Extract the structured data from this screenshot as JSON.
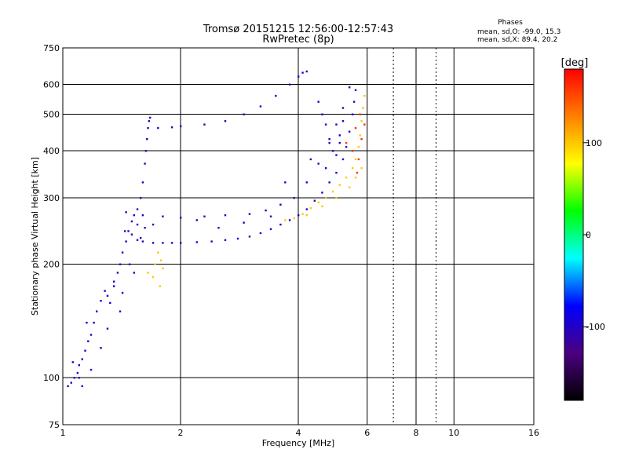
{
  "chart_data": {
    "type": "scatter",
    "title": "Tromsø 20151215 12:56:00-12:57:43",
    "subtitle": "RwPretec (8p)",
    "xlabel": "Frequency [MHz]",
    "ylabel": "Stationary phase Virtual Height [km]",
    "x_scale": "log",
    "y_scale": "log",
    "xlim": [
      1,
      16
    ],
    "ylim": [
      75,
      750
    ],
    "x_ticks": [
      1,
      2,
      4,
      6,
      8,
      10,
      16
    ],
    "y_ticks": [
      75,
      100,
      200,
      300,
      400,
      500,
      600,
      750
    ],
    "phase_header": "Phases",
    "phase_o": "mean, sd,O: -99.0, 15.3",
    "phase_x": "mean, sd,X:  89.4, 20.2",
    "colorbar": {
      "label": "[deg]",
      "range": [
        -180,
        180
      ],
      "ticks": [
        100,
        0,
        -100
      ],
      "tick_values": [
        100,
        0,
        -100
      ],
      "stops": [
        "#000000",
        "#4b0080",
        "#0000ff",
        "#00ffff",
        "#00ff00",
        "#ffff00",
        "#ff8000",
        "#ff0000"
      ]
    },
    "series": [
      {
        "phase_deg": -100,
        "points": [
          [
            1.03,
            95
          ],
          [
            1.05,
            97
          ],
          [
            1.07,
            100
          ],
          [
            1.09,
            103
          ],
          [
            1.1,
            108
          ],
          [
            1.12,
            112
          ],
          [
            1.14,
            118
          ],
          [
            1.16,
            125
          ],
          [
            1.18,
            130
          ],
          [
            1.2,
            140
          ],
          [
            1.22,
            150
          ],
          [
            1.25,
            160
          ],
          [
            1.28,
            170
          ],
          [
            1.3,
            165
          ],
          [
            1.32,
            158
          ],
          [
            1.35,
            175
          ],
          [
            1.38,
            190
          ],
          [
            1.4,
            200
          ],
          [
            1.42,
            215
          ],
          [
            1.45,
            230
          ],
          [
            1.47,
            245
          ],
          [
            1.5,
            260
          ],
          [
            1.52,
            270
          ],
          [
            1.55,
            280
          ],
          [
            1.58,
            300
          ],
          [
            1.6,
            330
          ],
          [
            1.62,
            370
          ],
          [
            1.63,
            400
          ],
          [
            1.64,
            430
          ],
          [
            1.65,
            460
          ],
          [
            1.66,
            480
          ],
          [
            1.67,
            490
          ],
          [
            1.44,
            245
          ],
          [
            1.5,
            240
          ],
          [
            1.55,
            232
          ],
          [
            1.6,
            230
          ],
          [
            1.7,
            228
          ],
          [
            1.8,
            228
          ],
          [
            1.9,
            228
          ],
          [
            2.0,
            228
          ],
          [
            2.2,
            229
          ],
          [
            2.4,
            230
          ],
          [
            2.6,
            232
          ],
          [
            2.8,
            234
          ],
          [
            3.0,
            237
          ],
          [
            3.2,
            242
          ],
          [
            3.4,
            248
          ],
          [
            3.6,
            255
          ],
          [
            3.8,
            262
          ],
          [
            4.0,
            270
          ],
          [
            4.2,
            280
          ],
          [
            4.4,
            295
          ],
          [
            4.6,
            310
          ],
          [
            4.8,
            330
          ],
          [
            5.0,
            350
          ],
          [
            5.2,
            380
          ],
          [
            5.3,
            410
          ],
          [
            5.4,
            450
          ],
          [
            5.5,
            500
          ],
          [
            5.55,
            540
          ],
          [
            5.6,
            580
          ],
          [
            1.45,
            275
          ],
          [
            1.6,
            270
          ],
          [
            1.8,
            268
          ],
          [
            2.0,
            266
          ],
          [
            2.3,
            268
          ],
          [
            2.6,
            270
          ],
          [
            3.0,
            272
          ],
          [
            3.3,
            278
          ],
          [
            3.6,
            288
          ],
          [
            3.9,
            300
          ],
          [
            4.2,
            330
          ],
          [
            4.5,
            370
          ],
          [
            4.8,
            420
          ],
          [
            5.0,
            470
          ],
          [
            5.2,
            520
          ],
          [
            5.4,
            590
          ],
          [
            1.75,
            460
          ],
          [
            1.9,
            462
          ],
          [
            2.0,
            465
          ],
          [
            2.3,
            470
          ],
          [
            2.6,
            480
          ],
          [
            2.9,
            500
          ],
          [
            3.2,
            525
          ],
          [
            3.5,
            560
          ],
          [
            3.8,
            600
          ],
          [
            4.0,
            630
          ],
          [
            4.1,
            645
          ],
          [
            4.2,
            650
          ],
          [
            4.5,
            540
          ],
          [
            4.6,
            500
          ],
          [
            4.7,
            470
          ],
          [
            4.8,
            430
          ],
          [
            4.9,
            400
          ],
          [
            5.0,
            390
          ],
          [
            5.1,
            440
          ],
          [
            5.2,
            480
          ],
          [
            1.15,
            140
          ],
          [
            1.25,
            120
          ],
          [
            1.1,
            100
          ],
          [
            1.35,
            180
          ],
          [
            1.4,
            150
          ],
          [
            1.48,
            200
          ],
          [
            1.52,
            190
          ],
          [
            1.58,
            235
          ],
          [
            1.06,
            110
          ],
          [
            1.18,
            105
          ],
          [
            1.12,
            95
          ],
          [
            1.3,
            135
          ],
          [
            1.42,
            168
          ],
          [
            1.55,
            255
          ],
          [
            1.62,
            250
          ],
          [
            1.7,
            255
          ],
          [
            2.2,
            262
          ],
          [
            2.5,
            250
          ],
          [
            2.9,
            258
          ],
          [
            3.4,
            268
          ],
          [
            3.7,
            330
          ],
          [
            4.3,
            380
          ],
          [
            4.7,
            360
          ],
          [
            5.1,
            420
          ]
        ]
      },
      {
        "phase_deg": 100,
        "points": [
          [
            3.7,
            262
          ],
          [
            3.9,
            265
          ],
          [
            4.1,
            272
          ],
          [
            4.3,
            282
          ],
          [
            4.5,
            292
          ],
          [
            4.7,
            300
          ],
          [
            4.9,
            312
          ],
          [
            5.1,
            325
          ],
          [
            5.3,
            340
          ],
          [
            5.5,
            360
          ],
          [
            5.6,
            380
          ],
          [
            5.7,
            410
          ],
          [
            5.75,
            440
          ],
          [
            5.8,
            480
          ],
          [
            5.85,
            520
          ],
          [
            5.9,
            560
          ],
          [
            4.2,
            270
          ],
          [
            4.6,
            285
          ],
          [
            5.0,
            300
          ],
          [
            5.4,
            320
          ],
          [
            5.6,
            340
          ],
          [
            5.8,
            360
          ],
          [
            1.75,
            215
          ],
          [
            1.78,
            205
          ],
          [
            1.72,
            200
          ],
          [
            1.8,
            195
          ],
          [
            1.7,
            185
          ],
          [
            1.77,
            175
          ],
          [
            1.65,
            190
          ]
        ]
      },
      {
        "phase_deg": 160,
        "points": [
          [
            5.3,
            420
          ],
          [
            5.5,
            400
          ],
          [
            5.6,
            460
          ],
          [
            5.7,
            380
          ],
          [
            5.8,
            430
          ],
          [
            5.75,
            500
          ],
          [
            5.65,
            350
          ],
          [
            5.9,
            470
          ]
        ]
      }
    ]
  }
}
